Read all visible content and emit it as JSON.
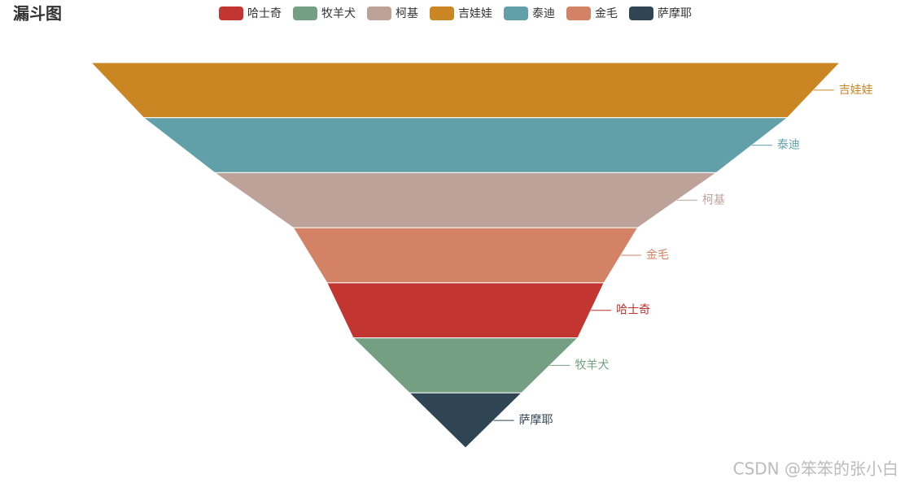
{
  "chart_data": {
    "type": "funnel",
    "title": "漏斗图",
    "categories": [
      "哈士奇",
      "牧羊犬",
      "柯基",
      "吉娃娃",
      "泰迪",
      "金毛",
      "萨摩耶"
    ],
    "values": [
      37,
      30,
      67,
      100,
      86,
      46,
      15
    ],
    "colors": [
      "#c23531",
      "#749f83",
      "#bda29a",
      "#ca8622",
      "#61a0a8",
      "#d48265",
      "#2f4554"
    ],
    "xlim": [
      0,
      100
    ],
    "watermark": "CSDN @笨笨的张小白"
  }
}
